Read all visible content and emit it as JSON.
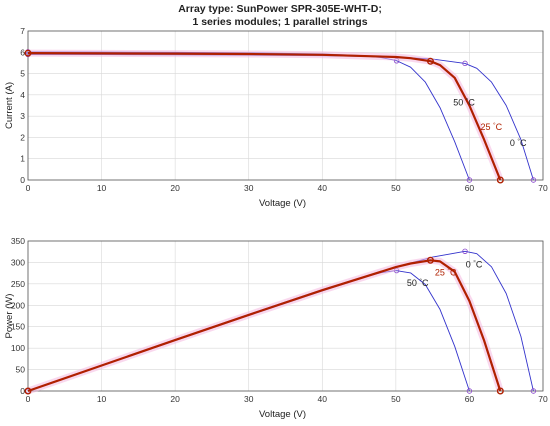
{
  "title_lines": [
    "Array type: SunPower SPR-305E-WHT-D;",
    "1 series modules; 1 parallel strings"
  ],
  "chart_data": [
    {
      "type": "line",
      "xlabel": "Voltage (V)",
      "ylabel": "Current (A)",
      "xlim": [
        0,
        70
      ],
      "ylim": [
        0,
        7
      ],
      "xticks": [
        "0",
        "10",
        "20",
        "30",
        "40",
        "50",
        "60",
        "70"
      ],
      "yticks": [
        "0",
        "1",
        "2",
        "3",
        "4",
        "5",
        "6",
        "7"
      ],
      "grid": true,
      "series": [
        {
          "name": "50",
          "color": "#3333cc",
          "x": [
            0,
            10,
            20,
            30,
            40,
            45,
            48,
            50,
            52,
            54,
            56,
            58,
            60
          ],
          "y": [
            6.02,
            6.01,
            6.0,
            5.97,
            5.92,
            5.85,
            5.75,
            5.62,
            5.3,
            4.6,
            3.4,
            1.8,
            0
          ],
          "markers": [
            [
              0,
              6.02
            ],
            [
              50.1,
              5.6
            ],
            [
              60,
              0
            ]
          ]
        },
        {
          "name": "25",
          "color": "#b02000",
          "x": [
            0,
            10,
            20,
            30,
            40,
            50,
            52,
            54.7,
            56,
            58,
            60,
            62,
            64.2
          ],
          "y": [
            5.96,
            5.95,
            5.94,
            5.92,
            5.88,
            5.78,
            5.72,
            5.58,
            5.4,
            4.8,
            3.5,
            1.9,
            0
          ],
          "markers": [
            [
              0,
              5.96
            ],
            [
              54.7,
              5.58
            ],
            [
              64.2,
              0
            ]
          ]
        },
        {
          "name": "0",
          "color": "#3333cc",
          "x": [
            0,
            10,
            20,
            30,
            40,
            50,
            55,
            59.4,
            61,
            63,
            65,
            67,
            68.7
          ],
          "y": [
            5.9,
            5.89,
            5.88,
            5.87,
            5.84,
            5.78,
            5.68,
            5.48,
            5.25,
            4.6,
            3.5,
            1.9,
            0
          ],
          "markers": [
            [
              0,
              5.9
            ],
            [
              59.4,
              5.48
            ],
            [
              68.7,
              0
            ]
          ]
        }
      ],
      "annotations": [
        {
          "text": "50",
          "unit": "°C",
          "x": 57.8,
          "y": 3.5,
          "color": "#222222"
        },
        {
          "text": "25",
          "unit": "°C",
          "x": 61.5,
          "y": 2.35,
          "color": "#b02000"
        },
        {
          "text": "0",
          "unit": "°C",
          "x": 65.5,
          "y": 1.6,
          "color": "#222222"
        }
      ]
    },
    {
      "type": "line",
      "xlabel": "Voltage (V)",
      "ylabel": "Power (W)",
      "xlim": [
        0,
        70
      ],
      "ylim": [
        0,
        350
      ],
      "xticks": [
        "0",
        "10",
        "20",
        "30",
        "40",
        "50",
        "60",
        "70"
      ],
      "yticks": [
        "0",
        "50",
        "100",
        "150",
        "200",
        "250",
        "300",
        "350"
      ],
      "grid": true,
      "series": [
        {
          "name": "50",
          "color": "#3333cc",
          "x": [
            0,
            10,
            20,
            30,
            40,
            45,
            48,
            50,
            52,
            54,
            56,
            58,
            60
          ],
          "y": [
            0,
            60.1,
            120,
            179,
            236.8,
            263,
            276,
            281,
            275.6,
            248.4,
            190.4,
            104.4,
            0
          ],
          "markers": [
            [
              0,
              0
            ],
            [
              50.1,
              281
            ],
            [
              60,
              0
            ]
          ]
        },
        {
          "name": "25",
          "color": "#b02000",
          "x": [
            0,
            10,
            20,
            30,
            40,
            50,
            52,
            54.7,
            56,
            58,
            60,
            62,
            64.2
          ],
          "y": [
            0,
            59.5,
            118.8,
            177.6,
            235.2,
            289,
            297.4,
            305,
            302.4,
            278.4,
            210,
            117.8,
            0
          ],
          "markers": [
            [
              0,
              0
            ],
            [
              54.7,
              305
            ],
            [
              64.2,
              0
            ]
          ]
        },
        {
          "name": "0",
          "color": "#3333cc",
          "x": [
            0,
            10,
            20,
            30,
            40,
            50,
            55,
            59.4,
            61,
            63,
            65,
            67,
            68.7
          ],
          "y": [
            0,
            58.9,
            117.6,
            176.1,
            233.6,
            289,
            312.4,
            326,
            320.3,
            289.8,
            227.5,
            127.3,
            0
          ],
          "markers": [
            [
              0,
              0
            ],
            [
              59.4,
              326
            ],
            [
              68.7,
              0
            ]
          ]
        }
      ],
      "annotations": [
        {
          "text": "50",
          "unit": "°C",
          "x": 51.5,
          "y": 245,
          "color": "#222222"
        },
        {
          "text": "25",
          "unit": "°C",
          "x": 55.3,
          "y": 270,
          "color": "#b02000"
        },
        {
          "text": "0",
          "unit": "°C",
          "x": 59.5,
          "y": 288,
          "color": "#222222"
        }
      ]
    }
  ]
}
